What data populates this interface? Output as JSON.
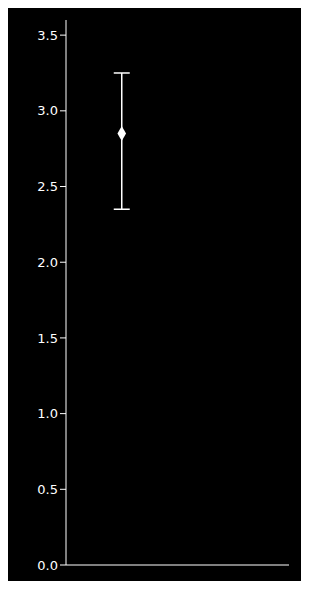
{
  "chart_data": {
    "type": "scatter",
    "x": [
      1
    ],
    "values": [
      2.85
    ],
    "error_low": [
      2.35
    ],
    "error_high": [
      3.25
    ],
    "color": "#ffffff",
    "marker": "diamond",
    "xlim": [
      0.5,
      2.5
    ],
    "ylim": [
      0.0,
      3.6
    ],
    "yticks": [
      {
        "value": 0,
        "label": "0.0"
      },
      0.5,
      {
        "value": 1,
        "label": "1.0"
      },
      1.5,
      {
        "value": 2,
        "label": "2.0"
      },
      2.5,
      {
        "value": 3,
        "label": "3.0"
      },
      3.5
    ],
    "tick_labels": "y"
  }
}
